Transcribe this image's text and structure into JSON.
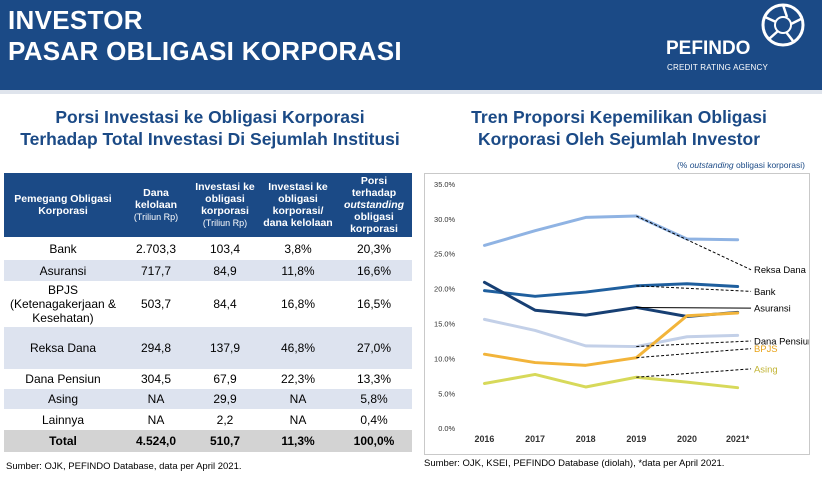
{
  "header": {
    "title_line1": "INVESTOR",
    "title_line2": "PASAR OBLIGASI KORPORASI",
    "logo_name": "PEFINDO",
    "logo_sub": "CREDIT RATING AGENCY",
    "logo_icon": "pefindo-logo-icon",
    "background": "#1b4a86"
  },
  "left": {
    "title_line1": "Porsi Investasi ke Obligasi Korporasi",
    "title_line2": "Terhadap Total Investasi Di Sejumlah Institusi",
    "columns": [
      {
        "label": "Pemegang Obligasi Korporasi",
        "sub": ""
      },
      {
        "label": "Dana kelolaan",
        "sub": "(Triliun Rp)"
      },
      {
        "label": "Investasi ke obligasi korporasi",
        "sub": "(Triliun Rp)"
      },
      {
        "label": "Investasi ke obligasi korporasi/ dana kelolaan",
        "sub": ""
      },
      {
        "label_pre": "Porsi terhadap ",
        "label_em": "outstanding",
        "label_post": " obligasi korporasi",
        "sub": ""
      }
    ],
    "rows": [
      [
        "Bank",
        "2.703,3",
        "103,4",
        "3,8%",
        "20,3%"
      ],
      [
        "Asuransi",
        "717,7",
        "84,9",
        "11,8%",
        "16,6%"
      ],
      [
        "BPJS (Ketenagakerjaan & Kesehatan)",
        "503,7",
        "84,4",
        "16,8%",
        "16,5%"
      ],
      [
        "Reksa Dana",
        "294,8",
        "137,9",
        "46,8%",
        "27,0%"
      ],
      [
        "Dana Pensiun",
        "304,5",
        "67,9",
        "22,3%",
        "13,3%"
      ],
      [
        "Asing",
        "NA",
        "29,9",
        "NA",
        "5,8%"
      ],
      [
        "Lainnya",
        "NA",
        "2,2",
        "NA",
        "0,4%"
      ]
    ],
    "total": [
      "Total",
      "4.524,0",
      "510,7",
      "11,3%",
      "100,0%"
    ],
    "source": "Sumber: OJK, PEFINDO Database, data per April 2021."
  },
  "right": {
    "title_line1": "Tren Proporsi Kepemilikan Obligasi",
    "title_line2": "Korporasi Oleh Sejumlah Investor",
    "note_pre": "(% ",
    "note_em": "outstanding",
    "note_post": " obligasi korporasi)",
    "source": "Sumber: OJK, KSEI, PEFINDO Database (diolah), *data per April 2021."
  },
  "chart_data": {
    "type": "line",
    "x": [
      "2016",
      "2017",
      "2018",
      "2019",
      "2020",
      "2021*"
    ],
    "ylim": [
      0,
      35
    ],
    "yticks": [
      "0.0%",
      "5.0%",
      "10.0%",
      "15.0%",
      "20.0%",
      "25.0%",
      "30.0%",
      "35.0%"
    ],
    "grid": false,
    "legend": "inline-right",
    "series": [
      {
        "name": "Reksa Dana",
        "color": "#8fb3e3",
        "values": [
          26.2,
          28.3,
          30.2,
          30.4,
          27.1,
          27.0
        ]
      },
      {
        "name": "Bank",
        "color": "#1f5f9e",
        "values": [
          19.7,
          18.9,
          19.5,
          20.4,
          20.7,
          20.3
        ]
      },
      {
        "name": "Asuransi",
        "color": "#173f73",
        "values": [
          20.9,
          16.9,
          16.2,
          17.3,
          16.0,
          16.6
        ]
      },
      {
        "name": "Dana Pensiun",
        "color": "#c3d0e8",
        "values": [
          15.6,
          14.0,
          11.8,
          11.7,
          13.1,
          13.3
        ]
      },
      {
        "name": "BPJS",
        "color": "#f2b43a",
        "values": [
          10.6,
          9.4,
          9.0,
          10.1,
          16.1,
          16.5
        ]
      },
      {
        "name": "Asing",
        "color": "#d7d95a",
        "values": [
          6.4,
          7.7,
          5.9,
          7.3,
          6.6,
          5.8
        ]
      }
    ],
    "label_colors": {
      "default": "#000000",
      "BPJS": "#e8a317",
      "Asing": "#c2b434"
    }
  }
}
